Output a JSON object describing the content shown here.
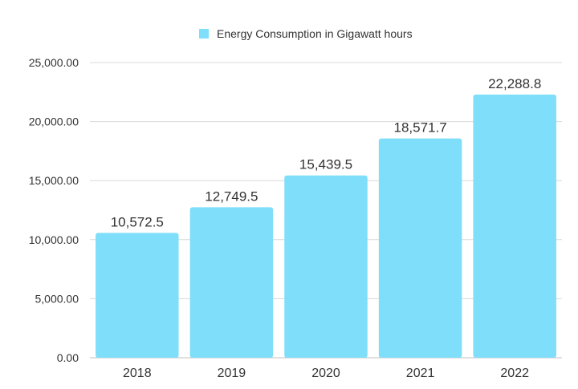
{
  "chart_data": {
    "type": "bar",
    "categories": [
      "2018",
      "2019",
      "2020",
      "2021",
      "2022"
    ],
    "series": [
      {
        "name": "Energy Consumption in Gigawatt hours",
        "values": [
          10572.5,
          12749.5,
          15439.5,
          18571.7,
          22288.8
        ],
        "data_labels": [
          "10,572.5",
          "12,749.5",
          "15,439.5",
          "18,571.7",
          "22,288.8"
        ]
      }
    ],
    "title": "",
    "xlabel": "",
    "ylabel": "",
    "ylim": [
      0,
      25000
    ],
    "yticks": [
      "0.00",
      "5,000.00",
      "10,000.00",
      "15,000.00",
      "20,000.00",
      "25,000.00"
    ],
    "grid": true,
    "legend": "top-center",
    "colors": {
      "bar": "#7FDEFA",
      "grid": "#d9d9d9",
      "text": "#333333",
      "axis": "#bfbfbf"
    }
  }
}
